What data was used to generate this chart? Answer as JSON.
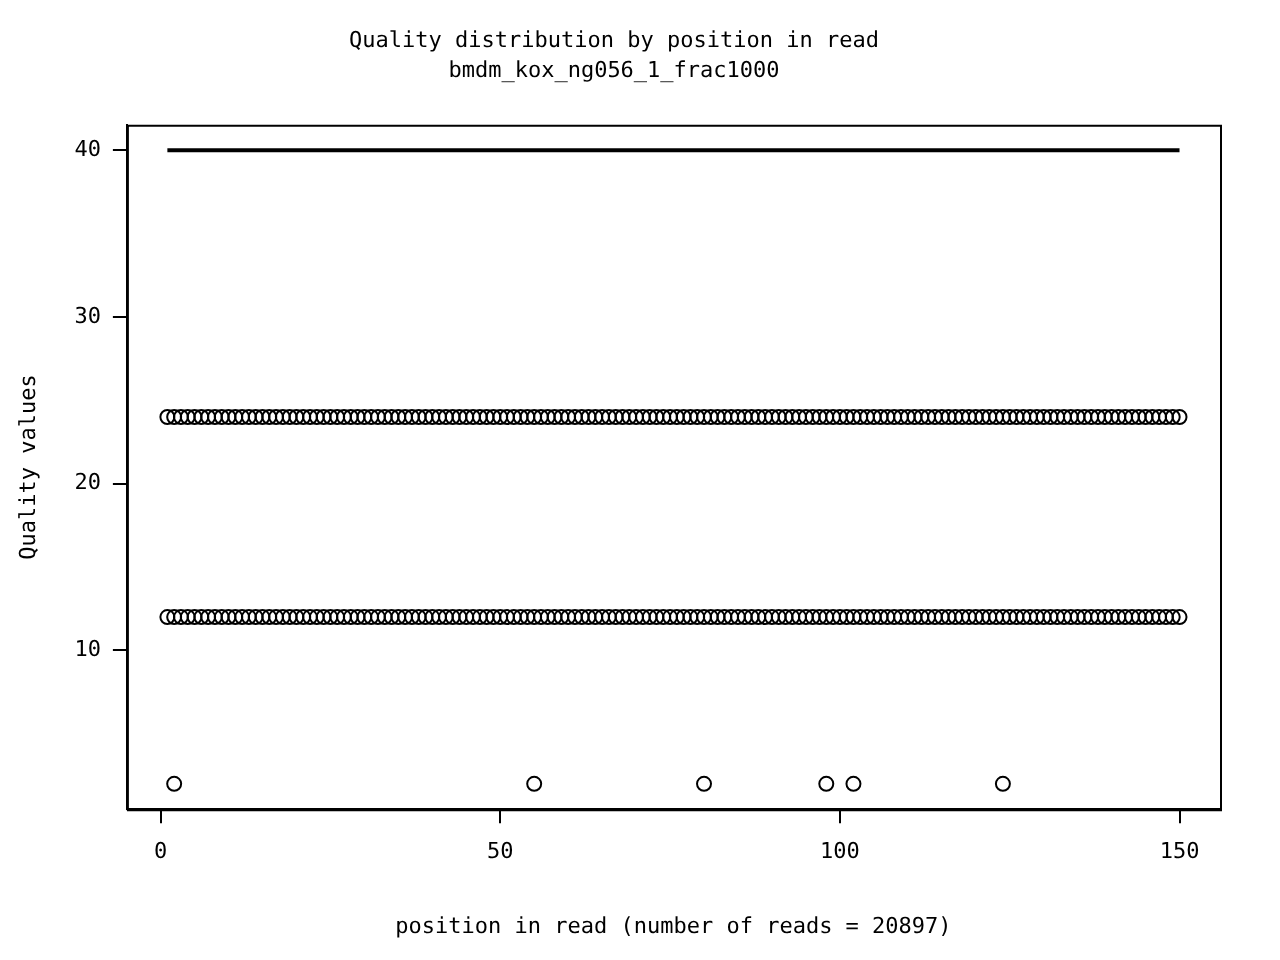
{
  "chart_data": {
    "type": "scatter",
    "title": "Quality distribution by position in read",
    "subtitle": "bmdm_kox_ng056_1_frac1000",
    "xlabel": "position in read (number of reads = 20897)",
    "ylabel": "Quality values",
    "x": [
      1,
      2,
      3,
      4,
      5,
      6,
      7,
      8,
      9,
      10,
      11,
      12,
      13,
      14,
      15,
      16,
      17,
      18,
      19,
      20,
      21,
      22,
      23,
      24,
      25,
      26,
      27,
      28,
      29,
      30,
      31,
      32,
      33,
      34,
      35,
      36,
      37,
      38,
      39,
      40,
      41,
      42,
      43,
      44,
      45,
      46,
      47,
      48,
      49,
      50,
      51,
      52,
      53,
      54,
      55,
      56,
      57,
      58,
      59,
      60,
      61,
      62,
      63,
      64,
      65,
      66,
      67,
      68,
      69,
      70,
      71,
      72,
      73,
      74,
      75,
      76,
      77,
      78,
      79,
      80,
      81,
      82,
      83,
      84,
      85,
      86,
      87,
      88,
      89,
      90,
      91,
      92,
      93,
      94,
      95,
      96,
      97,
      98,
      99,
      100,
      101,
      102,
      103,
      104,
      105,
      106,
      107,
      108,
      109,
      110,
      111,
      112,
      113,
      114,
      115,
      116,
      117,
      118,
      119,
      120,
      121,
      122,
      123,
      124,
      125,
      126,
      127,
      128,
      129,
      130,
      131,
      132,
      133,
      134,
      135,
      136,
      137,
      138,
      139,
      140,
      141,
      142,
      143,
      144,
      145,
      146,
      147,
      148,
      149,
      150
    ],
    "series": [
      {
        "type": "line",
        "marker": "none",
        "x": [
          1,
          150
        ],
        "values": [
          40,
          40
        ],
        "color": "#000000"
      },
      {
        "color": "#000000",
        "values": [
          24,
          24,
          24,
          24,
          24,
          24,
          24,
          24,
          24,
          24,
          24,
          24,
          24,
          24,
          24,
          24,
          24,
          24,
          24,
          24,
          24,
          24,
          24,
          24,
          24,
          24,
          24,
          24,
          24,
          24,
          24,
          24,
          24,
          24,
          24,
          24,
          24,
          24,
          24,
          24,
          24,
          24,
          24,
          24,
          24,
          24,
          24,
          24,
          24,
          24,
          24,
          24,
          24,
          24,
          24,
          24,
          24,
          24,
          24,
          24,
          24,
          24,
          24,
          24,
          24,
          24,
          24,
          24,
          24,
          24,
          24,
          24,
          24,
          24,
          24,
          24,
          24,
          24,
          24,
          24,
          24,
          24,
          24,
          24,
          24,
          24,
          24,
          24,
          24,
          24,
          24,
          24,
          24,
          24,
          24,
          24,
          24,
          24,
          24,
          24,
          24,
          24,
          24,
          24,
          24,
          24,
          24,
          24,
          24,
          24,
          24,
          24,
          24,
          24,
          24,
          24,
          24,
          24,
          24,
          24,
          24,
          24,
          24,
          24,
          24,
          24,
          24,
          24,
          24,
          24,
          24,
          24,
          24,
          24,
          24,
          24,
          24,
          24,
          24,
          24,
          24,
          24,
          24,
          24,
          24,
          24,
          24,
          24,
          24,
          24
        ]
      },
      {
        "color": "#000000",
        "values": [
          12,
          12,
          12,
          12,
          12,
          12,
          12,
          12,
          12,
          12,
          12,
          12,
          12,
          12,
          12,
          12,
          12,
          12,
          12,
          12,
          12,
          12,
          12,
          12,
          12,
          12,
          12,
          12,
          12,
          12,
          12,
          12,
          12,
          12,
          12,
          12,
          12,
          12,
          12,
          12,
          12,
          12,
          12,
          12,
          12,
          12,
          12,
          12,
          12,
          12,
          12,
          12,
          12,
          12,
          12,
          12,
          12,
          12,
          12,
          12,
          12,
          12,
          12,
          12,
          12,
          12,
          12,
          12,
          12,
          12,
          12,
          12,
          12,
          12,
          12,
          12,
          12,
          12,
          12,
          12,
          12,
          12,
          12,
          12,
          12,
          12,
          12,
          12,
          12,
          12,
          12,
          12,
          12,
          12,
          12,
          12,
          12,
          12,
          12,
          12,
          12,
          12,
          12,
          12,
          12,
          12,
          12,
          12,
          12,
          12,
          12,
          12,
          12,
          12,
          12,
          12,
          12,
          12,
          12,
          12,
          12,
          12,
          12,
          12,
          12,
          12,
          12,
          12,
          12,
          12,
          12,
          12,
          12,
          12,
          12,
          12,
          12,
          12,
          12,
          12,
          12,
          12,
          12,
          12,
          12,
          12,
          12,
          12,
          12,
          12
        ]
      },
      {
        "color": "#000000",
        "x": [
          2,
          55,
          80,
          98,
          102,
          124
        ],
        "values": [
          2,
          2,
          2,
          2,
          2,
          2
        ]
      }
    ],
    "marker": "circle",
    "xlim": [
      -4.96,
      155.96
    ],
    "ylim": [
      0.48,
      41.52
    ],
    "xticks": [
      0,
      50,
      100,
      150
    ],
    "yticks": [
      10,
      20,
      30,
      40
    ],
    "grid": false,
    "legend": false
  }
}
